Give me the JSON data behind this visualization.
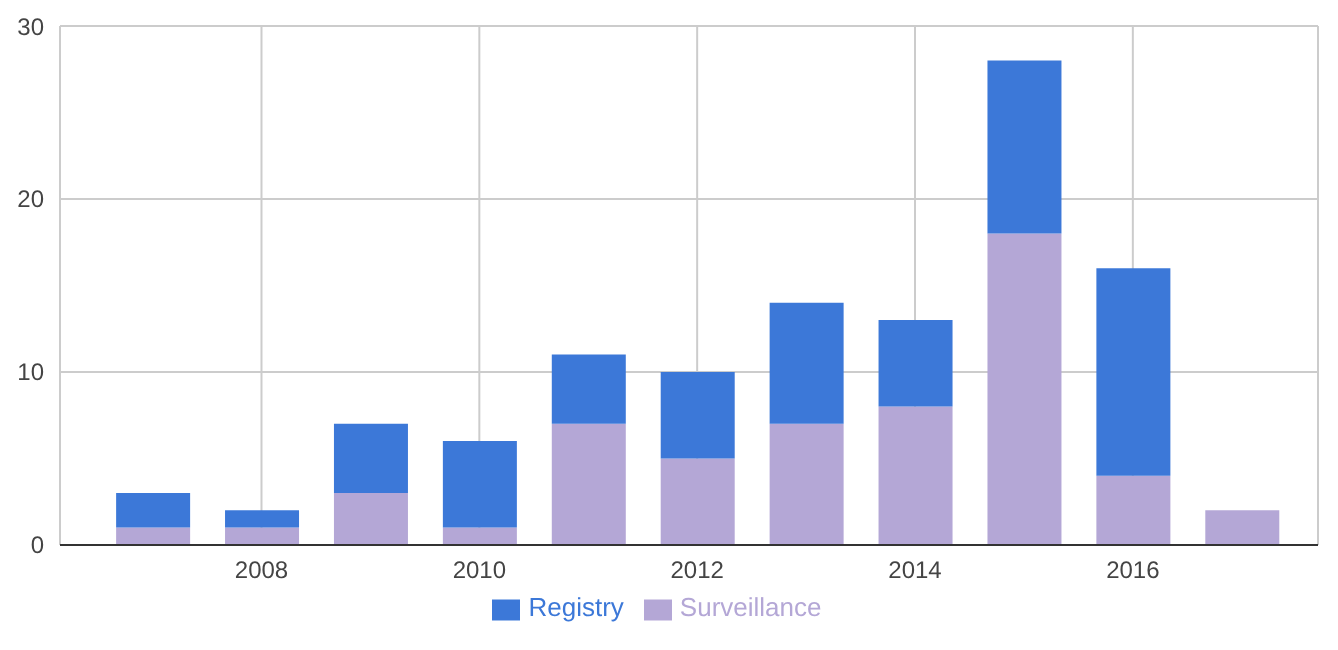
{
  "chart_data": {
    "type": "bar",
    "stacked": true,
    "x": [
      2007,
      2008,
      2009,
      2010,
      2011,
      2012,
      2013,
      2014,
      2015,
      2016,
      2017
    ],
    "series": [
      {
        "name": "Surveillance",
        "color": "#b4a7d6",
        "values": [
          1,
          1,
          3,
          1,
          7,
          5,
          7,
          8,
          18,
          4,
          2
        ]
      },
      {
        "name": "Registry",
        "color": "#3c78d8",
        "values": [
          2,
          1,
          4,
          5,
          4,
          5,
          7,
          5,
          10,
          12,
          0
        ]
      }
    ],
    "xlim": [
      2006.15,
      2017.7
    ],
    "xticks": [
      2008,
      2010,
      2012,
      2014,
      2016
    ],
    "ylim": [
      0,
      30
    ],
    "yticks": [
      0,
      10,
      20,
      30
    ],
    "grid": true,
    "legend": "bottom"
  }
}
